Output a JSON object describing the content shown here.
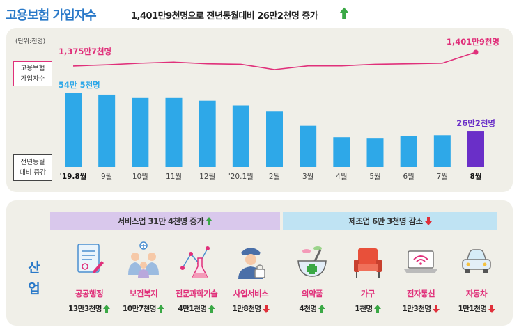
{
  "header": {
    "title": "고용보험 가입자수",
    "subtitle": "1,401만9천명으로 전년동월대비 26만2천명 증가",
    "subtitle_arrow": "up-arrow-icon"
  },
  "chart_data": {
    "type": "bar",
    "unit_label": "(단위:천명)",
    "categories": [
      "'19.8월",
      "9월",
      "10월",
      "11월",
      "12월",
      "'20.1월",
      "2월",
      "3월",
      "4월",
      "5월",
      "6월",
      "7월",
      "8월"
    ],
    "series": [
      {
        "name": "고용보험 가입자수",
        "type": "line",
        "values": [
          13757,
          13780,
          13810,
          13830,
          13800,
          13790,
          13690,
          13760,
          13760,
          13790,
          13800,
          13810,
          14019
        ],
        "labels": [
          {
            "index": 0,
            "text": "1,375만7천명"
          },
          {
            "index": 12,
            "text": "1,401만9천명"
          }
        ],
        "color": "#e0307a"
      },
      {
        "name": "전년동월 대비 증감",
        "type": "bar",
        "values": [
          545,
          535,
          510,
          510,
          490,
          455,
          410,
          305,
          220,
          210,
          230,
          235,
          262
        ],
        "labels": [
          {
            "index": 0,
            "text": "54만 5천명"
          },
          {
            "index": 12,
            "text": "26만2천명"
          }
        ],
        "color": "#2ea8e8",
        "highlight_color": "#6a2fc8",
        "highlight_index": 12
      }
    ],
    "line_series_label": [
      "고용보험",
      "가입자수"
    ],
    "bar_series_label": [
      "전년동월",
      "대비 증감"
    ],
    "bold_categories": [
      0,
      12
    ],
    "grid": false
  },
  "industry": {
    "label": [
      "산",
      "업"
    ],
    "service_band": {
      "text": "서비스업 31만 4천명 증가",
      "direction": "up"
    },
    "manufacturing_band": {
      "text": "제조업 6만 3천명 감소",
      "direction": "down"
    },
    "items": [
      {
        "name": "공공행정",
        "value": "13만3천명",
        "direction": "up",
        "icon": "document-icon"
      },
      {
        "name": "보건복지",
        "value": "10만7천명",
        "direction": "up",
        "icon": "family-icon"
      },
      {
        "name": "전문과학기술",
        "value": "4만1천명",
        "direction": "up",
        "icon": "flask-icon"
      },
      {
        "name": "사업서비스",
        "value": "1만8천명",
        "direction": "down",
        "icon": "security-guard-icon"
      },
      {
        "name": "의약품",
        "value": "4천명",
        "direction": "up",
        "icon": "mortar-pestle-icon"
      },
      {
        "name": "가구",
        "value": "1천명",
        "direction": "up",
        "icon": "armchair-icon"
      },
      {
        "name": "전자통신",
        "value": "1만3천명",
        "direction": "down",
        "icon": "wifi-laptop-icon"
      },
      {
        "name": "자동차",
        "value": "1만1천명",
        "direction": "down",
        "icon": "car-icon"
      }
    ]
  },
  "colors": {
    "title_blue": "#2878c8",
    "line_pink": "#e0307a",
    "bar_blue": "#2ea8e8",
    "bar_highlight": "#6a2fc8",
    "up_green": "#3aa845",
    "down_red": "#e0303a",
    "panel_bg": "#f0efe8"
  }
}
